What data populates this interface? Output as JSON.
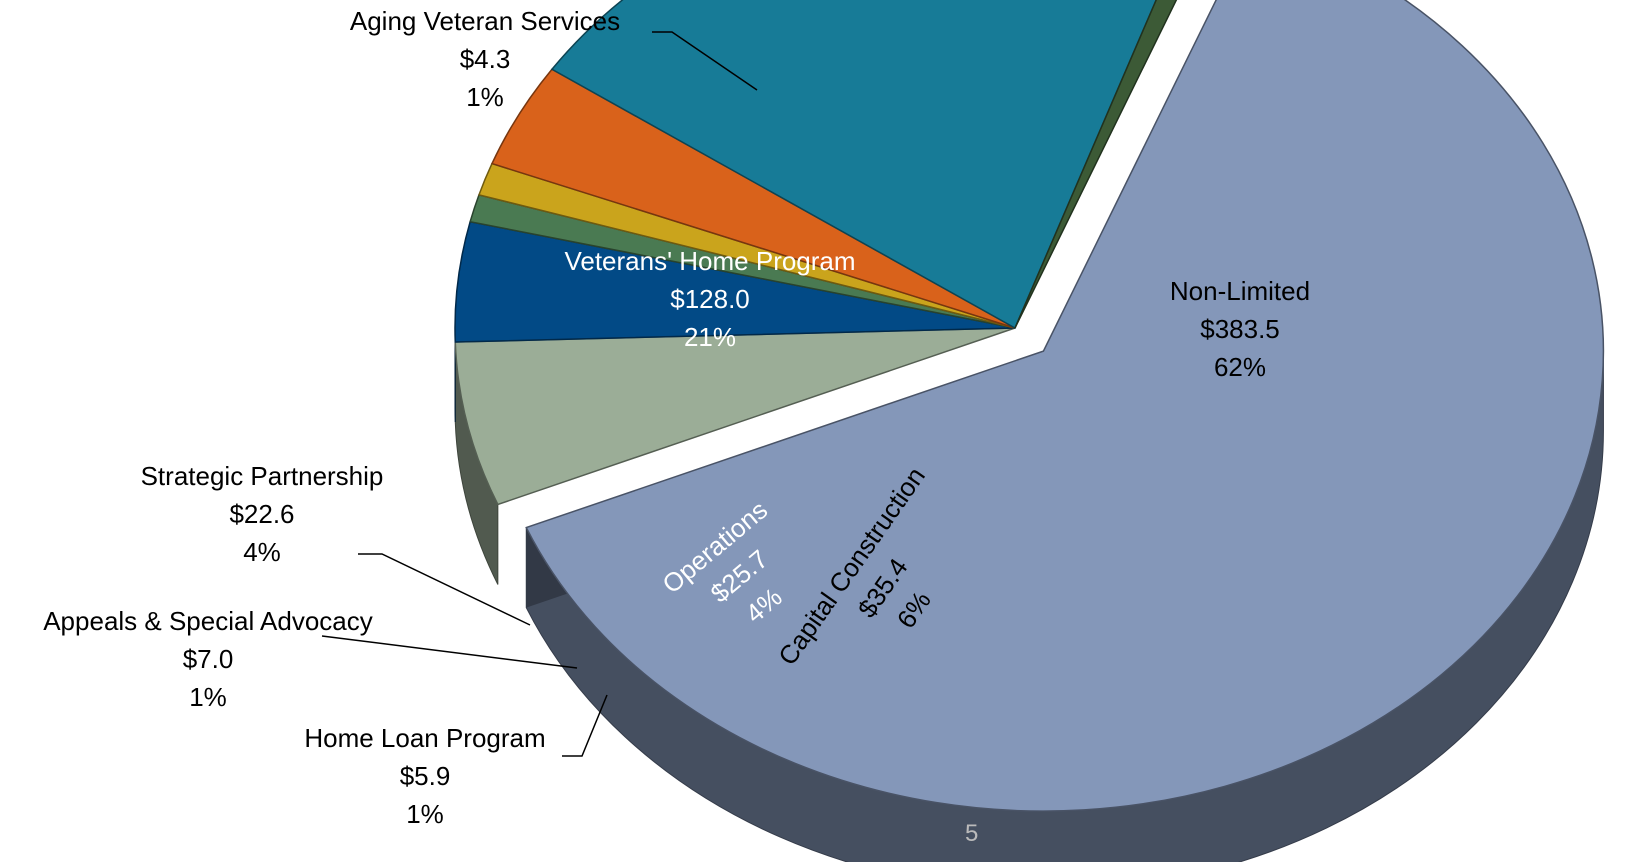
{
  "chart_data": {
    "type": "pie",
    "title": "",
    "three_d": true,
    "label_format": "${value}\n{percent}",
    "slices": [
      {
        "label": "Non-Limited",
        "value": 383.5,
        "percent": "62%",
        "color": "#8497b9",
        "exploded": true
      },
      {
        "label": "Capital Construction",
        "value": 35.4,
        "percent": "6%",
        "color": "#9bad97"
      },
      {
        "label": "Operations",
        "value": 25.7,
        "percent": "4%",
        "color": "#024a86"
      },
      {
        "label": "Home Loan Program",
        "value": 5.9,
        "percent": "1%",
        "color": "#4a7a52"
      },
      {
        "label": "Appeals & Special Advocacy",
        "value": 7.0,
        "percent": "1%",
        "color": "#caa41c"
      },
      {
        "label": "Strategic Partnership",
        "value": 22.6,
        "percent": "4%",
        "color": "#d9621b"
      },
      {
        "label": "Veterans' Home Program",
        "value": 128.0,
        "percent": "21%",
        "color": "#177b97"
      },
      {
        "label": "Aging Veteran Services",
        "value": 4.3,
        "percent": "1%",
        "color": "#3c5a36"
      }
    ]
  },
  "page_number": "5"
}
